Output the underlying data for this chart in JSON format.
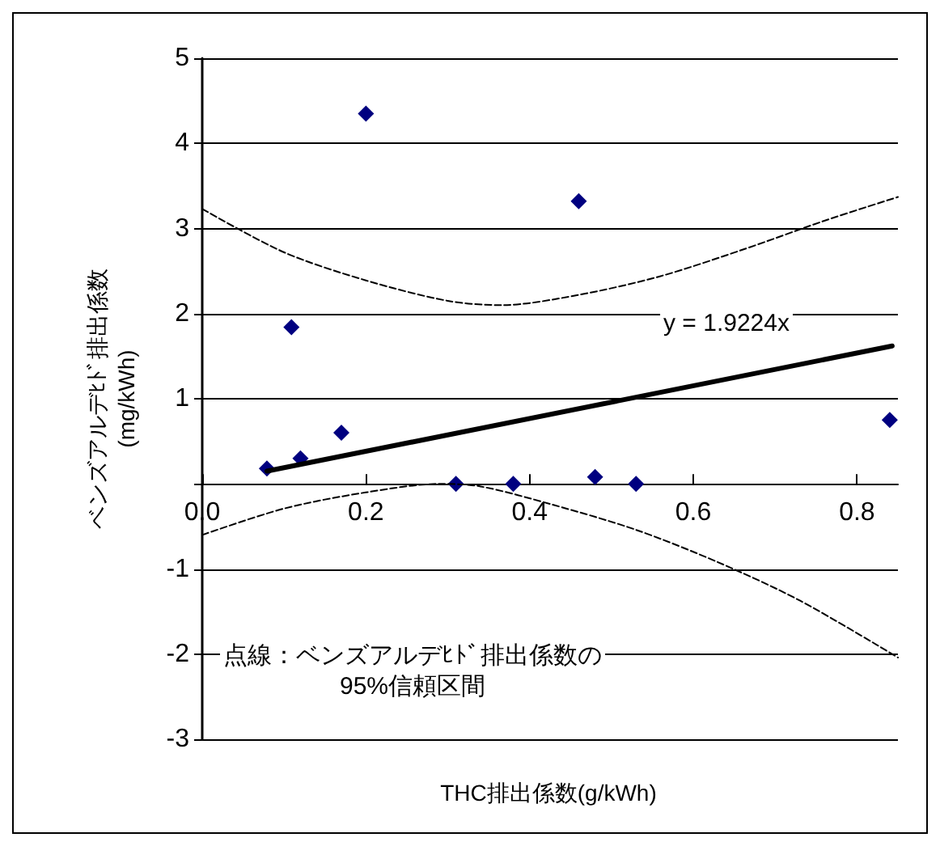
{
  "chart_data": {
    "type": "scatter",
    "xlabel": "THC排出係数(g/kWh)",
    "ylabel": "ベンズアルデﾋﾄﾞ排出係数\n(mg/kWh)",
    "xlim": [
      0,
      0.85
    ],
    "xticks": [
      {
        "value": 0,
        "label": "0.0"
      },
      0.2,
      0.4,
      0.6,
      0.8
    ],
    "ylim": [
      -3,
      5
    ],
    "yticks": [
      -3,
      -2,
      -1,
      {
        "value": 0,
        "label": null
      },
      1,
      2,
      3,
      4,
      5
    ],
    "grid": "y",
    "marker": "diamond",
    "series": [
      {
        "color": "#000080",
        "x": [
          0.079,
          0.109,
          0.12,
          0.17,
          0.2,
          0.31,
          0.38,
          0.46,
          0.48,
          0.53,
          0.84
        ],
        "values": [
          0.18,
          1.84,
          0.3,
          0.6,
          4.35,
          0,
          0,
          3.32,
          0.08,
          0,
          0.75
        ]
      },
      {
        "type": "line",
        "color": "#000000",
        "marker": "none",
        "line_style": "solid",
        "x": [
          0.079,
          0.843
        ],
        "values": [
          0.15,
          1.62
        ]
      },
      {
        "type": "line",
        "color": "#000000",
        "marker": "none",
        "line_style": "dashed",
        "x": [
          0,
          0.1,
          0.2,
          0.3,
          0.366,
          0.46,
          0.56,
          0.66,
          0.76,
          0.85
        ],
        "values": [
          3.23,
          2.72,
          2.39,
          2.15,
          2.1,
          2.22,
          2.44,
          2.75,
          3.09,
          3.37
        ]
      },
      {
        "type": "line",
        "color": "#000000",
        "marker": "none",
        "line_style": "dashed",
        "x": [
          0,
          0.1,
          0.2,
          0.29,
          0.34,
          0.43,
          0.53,
          0.63,
          0.73,
          0.85
        ],
        "values": [
          -0.6,
          -0.29,
          -0.1,
          0,
          -0.03,
          -0.25,
          -0.54,
          -0.92,
          -1.37,
          -2.04
        ]
      }
    ],
    "annotations": [
      "y = 1.9224x",
      "点線：ベンズアルデﾋﾄﾞ排出係数の\n95%信頼区間"
    ]
  }
}
